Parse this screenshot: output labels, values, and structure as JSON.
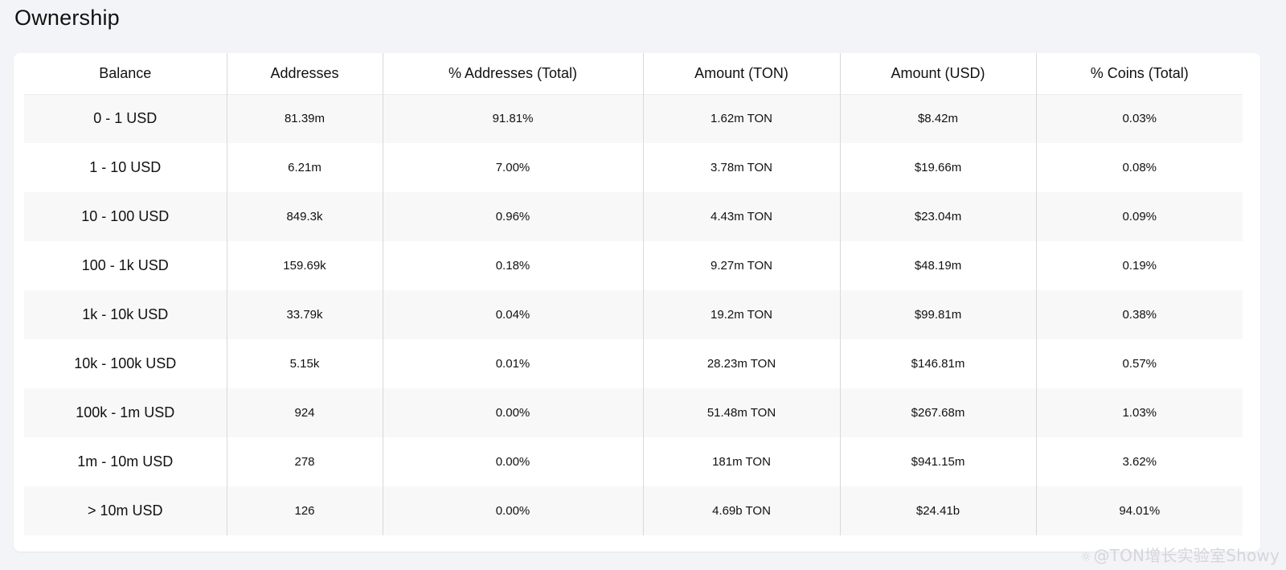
{
  "page": {
    "title": "Ownership"
  },
  "table": {
    "columns": [
      "Balance",
      "Addresses",
      "% Addresses (Total)",
      "Amount (TON)",
      "Amount (USD)",
      "% Coins (Total)"
    ],
    "rows": [
      {
        "balance": "0 - 1 USD",
        "addresses": "81.39m",
        "pct_addresses": "91.81%",
        "amount_ton": "1.62m TON",
        "amount_usd": "$8.42m",
        "pct_coins": "0.03%"
      },
      {
        "balance": "1 - 10 USD",
        "addresses": "6.21m",
        "pct_addresses": "7.00%",
        "amount_ton": "3.78m TON",
        "amount_usd": "$19.66m",
        "pct_coins": "0.08%"
      },
      {
        "balance": "10 - 100 USD",
        "addresses": "849.3k",
        "pct_addresses": "0.96%",
        "amount_ton": "4.43m TON",
        "amount_usd": "$23.04m",
        "pct_coins": "0.09%"
      },
      {
        "balance": "100 - 1k USD",
        "addresses": "159.69k",
        "pct_addresses": "0.18%",
        "amount_ton": "9.27m TON",
        "amount_usd": "$48.19m",
        "pct_coins": "0.19%"
      },
      {
        "balance": "1k - 10k USD",
        "addresses": "33.79k",
        "pct_addresses": "0.04%",
        "amount_ton": "19.2m TON",
        "amount_usd": "$99.81m",
        "pct_coins": "0.38%"
      },
      {
        "balance": "10k - 100k USD",
        "addresses": "5.15k",
        "pct_addresses": "0.01%",
        "amount_ton": "28.23m TON",
        "amount_usd": "$146.81m",
        "pct_coins": "0.57%"
      },
      {
        "balance": "100k - 1m USD",
        "addresses": "924",
        "pct_addresses": "0.00%",
        "amount_ton": "51.48m TON",
        "amount_usd": "$267.68m",
        "pct_coins": "1.03%"
      },
      {
        "balance": "1m - 10m USD",
        "addresses": "278",
        "pct_addresses": "0.00%",
        "amount_ton": "181m TON",
        "amount_usd": "$941.15m",
        "pct_coins": "3.62%"
      },
      {
        "balance": "> 10m USD",
        "addresses": "126",
        "pct_addresses": "0.00%",
        "amount_ton": "4.69b TON",
        "amount_usd": "$24.41b",
        "pct_coins": "94.01%"
      }
    ]
  },
  "watermark": {
    "text": "@TON增长实验室Showy",
    "icon": "weibo-icon"
  },
  "colors": {
    "page_background": "#f3f4f8",
    "card_background": "#ffffff",
    "row_striped": "#f8f8f8",
    "divider": "#d8d8d8",
    "text": "#111111"
  }
}
